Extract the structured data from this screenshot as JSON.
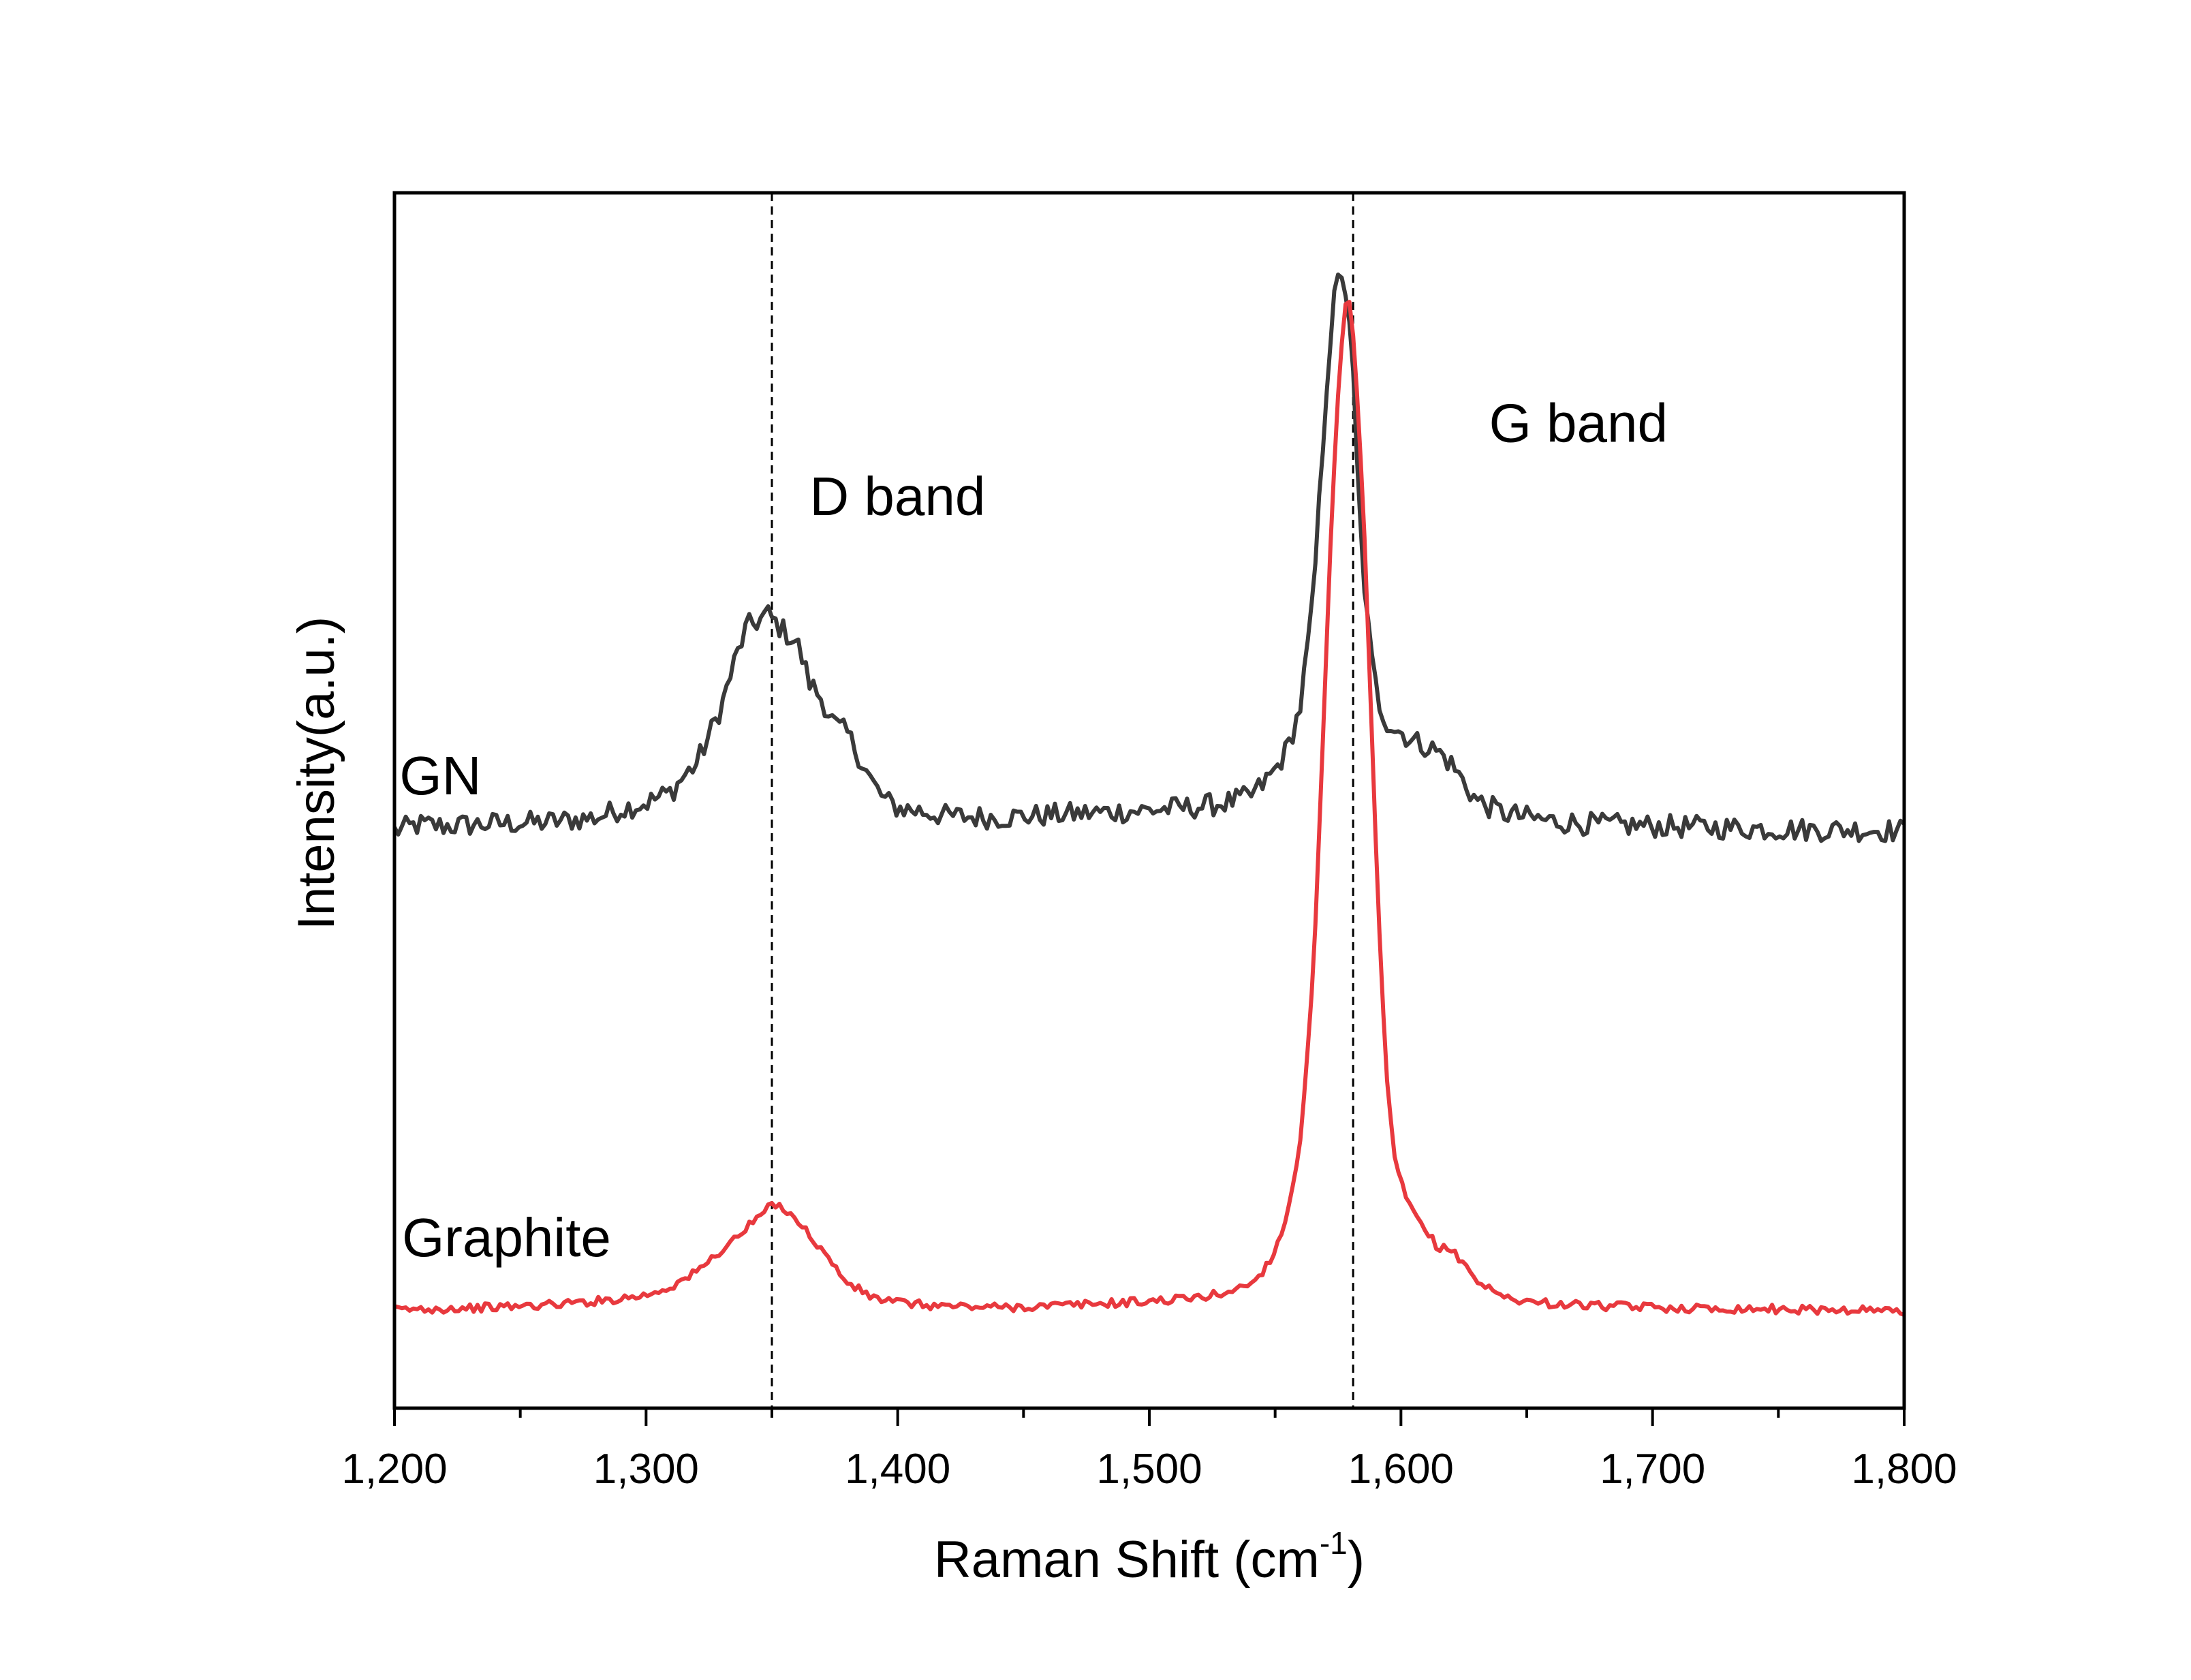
{
  "chart_data": {
    "type": "line",
    "xlabel": "Raman Shift (cm",
    "xlabel_sup": "-1",
    "xlabel_close": ")",
    "ylabel": "Intensity(a.u.)",
    "xlim": [
      1200,
      1800
    ],
    "ylim": [
      0,
      1
    ],
    "x_ticks": [
      1200,
      1300,
      1400,
      1500,
      1600,
      1700,
      1800
    ],
    "x_tick_labels": [
      "1,200",
      "1,300",
      "1,400",
      "1,500",
      "1,600",
      "1,700",
      "1,800"
    ],
    "x_minor_ticks": [
      1250,
      1350,
      1450,
      1550,
      1650,
      1750
    ],
    "y_ticks_labeled": false,
    "grid": false,
    "reference_lines": [
      1350,
      1581
    ],
    "annotations": [
      {
        "text": "D band",
        "x": 1365,
        "y": 0.735
      },
      {
        "text": "G band",
        "x": 1635,
        "y": 0.795
      },
      {
        "text": "GN",
        "x": 1202,
        "y": 0.505
      },
      {
        "text": "Graphite",
        "x": 1203,
        "y": 0.125
      }
    ],
    "series": [
      {
        "label": "GN",
        "color": "#3a3a3a",
        "x": [
          1200,
          1210,
          1220,
          1240,
          1260,
          1280,
          1290,
          1300,
          1310,
          1315,
          1320,
          1325,
          1330,
          1335,
          1340,
          1345,
          1348,
          1352,
          1356,
          1360,
          1365,
          1370,
          1375,
          1380,
          1385,
          1390,
          1395,
          1400,
          1410,
          1420,
          1440,
          1460,
          1480,
          1500,
          1520,
          1530,
          1540,
          1545,
          1550,
          1555,
          1560,
          1565,
          1568,
          1571,
          1574,
          1577,
          1579,
          1581,
          1583,
          1585,
          1588,
          1591,
          1594,
          1597,
          1600,
          1605,
          1610,
          1615,
          1620,
          1625,
          1630,
          1640,
          1650,
          1660,
          1680,
          1700,
          1720,
          1740,
          1760,
          1780,
          1800
        ],
        "y": [
          0.475,
          0.48,
          0.479,
          0.481,
          0.482,
          0.486,
          0.493,
          0.498,
          0.507,
          0.52,
          0.53,
          0.553,
          0.578,
          0.613,
          0.643,
          0.648,
          0.654,
          0.645,
          0.637,
          0.63,
          0.597,
          0.583,
          0.562,
          0.555,
          0.535,
          0.514,
          0.5,
          0.494,
          0.491,
          0.487,
          0.486,
          0.488,
          0.49,
          0.492,
          0.495,
          0.498,
          0.503,
          0.513,
          0.525,
          0.543,
          0.577,
          0.662,
          0.76,
          0.86,
          0.922,
          0.937,
          0.9,
          0.848,
          0.755,
          0.688,
          0.62,
          0.582,
          0.566,
          0.56,
          0.556,
          0.549,
          0.545,
          0.54,
          0.53,
          0.515,
          0.5,
          0.49,
          0.486,
          0.483,
          0.48,
          0.479,
          0.478,
          0.477,
          0.476,
          0.476,
          0.475
        ]
      },
      {
        "label": "Graphite",
        "color": "#e8393e",
        "x": [
          1200,
          1220,
          1240,
          1260,
          1280,
          1300,
          1310,
          1320,
          1330,
          1340,
          1345,
          1350,
          1355,
          1360,
          1365,
          1370,
          1375,
          1380,
          1390,
          1400,
          1410,
          1420,
          1440,
          1460,
          1480,
          1500,
          1520,
          1530,
          1540,
          1545,
          1550,
          1555,
          1560,
          1565,
          1568,
          1571,
          1574,
          1577,
          1579,
          1581,
          1583,
          1585,
          1588,
          1591,
          1594,
          1597,
          1600,
          1605,
          1610,
          1615,
          1620,
          1625,
          1630,
          1640,
          1650,
          1660,
          1680,
          1700,
          1720,
          1740,
          1760,
          1780,
          1800
        ],
        "y": [
          0.081,
          0.082,
          0.083,
          0.085,
          0.088,
          0.093,
          0.1,
          0.112,
          0.13,
          0.148,
          0.158,
          0.167,
          0.165,
          0.155,
          0.142,
          0.13,
          0.116,
          0.103,
          0.091,
          0.087,
          0.085,
          0.084,
          0.083,
          0.084,
          0.086,
          0.088,
          0.091,
          0.095,
          0.102,
          0.112,
          0.13,
          0.16,
          0.22,
          0.35,
          0.5,
          0.66,
          0.8,
          0.89,
          0.92,
          0.88,
          0.82,
          0.74,
          0.58,
          0.41,
          0.28,
          0.21,
          0.185,
          0.16,
          0.145,
          0.132,
          0.13,
          0.12,
          0.105,
          0.092,
          0.088,
          0.086,
          0.084,
          0.083,
          0.082,
          0.082,
          0.081,
          0.081,
          0.08
        ]
      }
    ]
  }
}
